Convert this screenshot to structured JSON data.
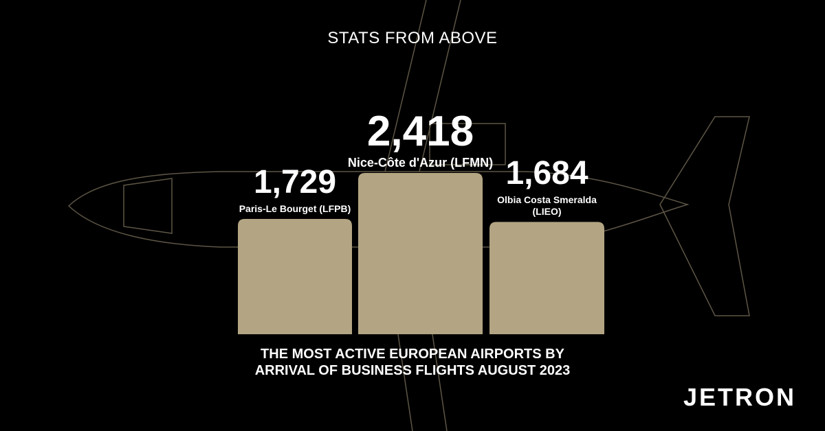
{
  "chart_data": {
    "type": "bar",
    "title": "STATS FROM ABOVE",
    "subtitle": "THE MOST ACTIVE EUROPEAN AIRPORTS BY ARRIVAL OF BUSINESS FLIGHTS AUGUST 2023",
    "brand": "JETRON",
    "categories": [
      "Paris-Le Bourget (LFPB)",
      "Nice-Côte d'Azur (LFMN)",
      "Olbia Costa Smeralda (LIEO)"
    ],
    "values": [
      1729,
      2418,
      1684
    ],
    "value_labels": [
      "1,729",
      "2,418",
      "1,684"
    ],
    "color": "#b3a583"
  }
}
